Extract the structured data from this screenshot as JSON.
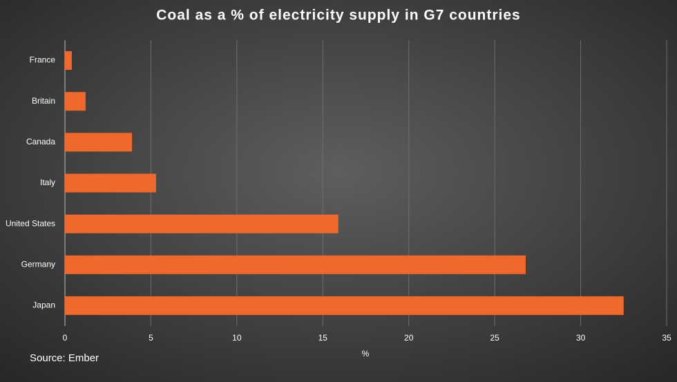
{
  "chart_data": {
    "type": "hbar",
    "title": "Coal as a % of electricity supply in G7 countries",
    "categories": [
      "France",
      "Britain",
      "Canada",
      "Italy",
      "United States",
      "Germany",
      "Japan"
    ],
    "values": [
      0.4,
      1.2,
      3.9,
      5.3,
      15.9,
      26.8,
      32.5
    ],
    "color": "#f0692a",
    "xlabel": "%",
    "xlim": [
      0,
      35
    ],
    "xticks": [
      0,
      5,
      10,
      15,
      20,
      25,
      30,
      35
    ],
    "grid": true,
    "source": "Source: Ember"
  }
}
